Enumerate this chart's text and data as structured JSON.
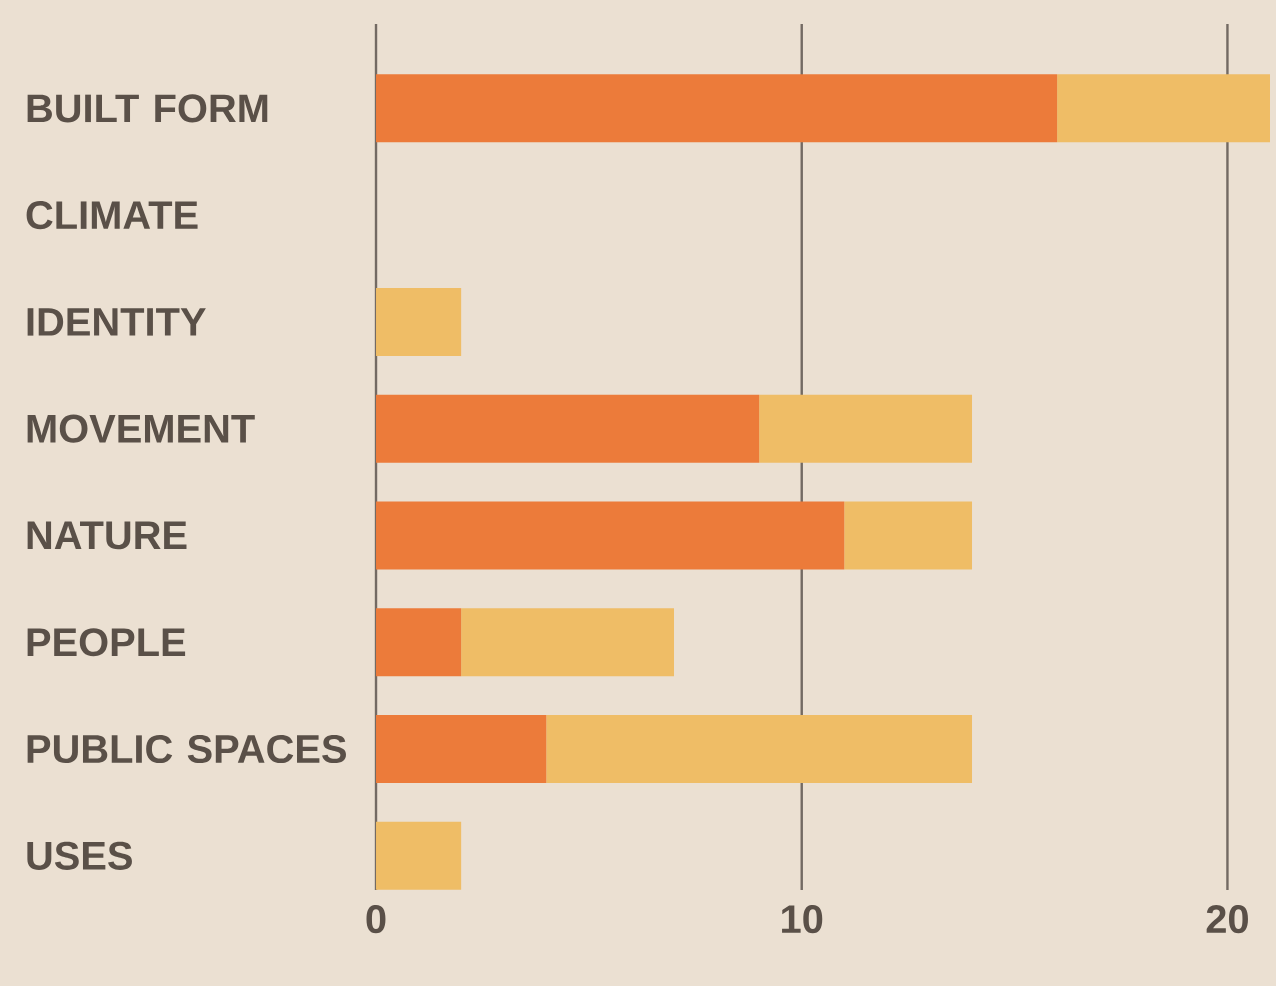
{
  "chart_data": {
    "type": "bar",
    "orientation": "horizontal",
    "stacked": true,
    "categories": [
      "BUILT FORM",
      "CLIMATE",
      "IDENTITY",
      "MOVEMENT",
      "NATURE",
      "PEOPLE",
      "PUBLIC SPACES",
      "USES"
    ],
    "series": [
      {
        "color": "#ec7b3a",
        "values": [
          16,
          0,
          0,
          9,
          11,
          2,
          4,
          0
        ]
      },
      {
        "color": "#efbd66",
        "values": [
          5,
          0,
          2,
          5,
          3,
          5,
          10,
          2
        ]
      }
    ],
    "xlim": [
      0,
      21
    ],
    "xticks": [
      0,
      10,
      20
    ],
    "grid": "x"
  }
}
